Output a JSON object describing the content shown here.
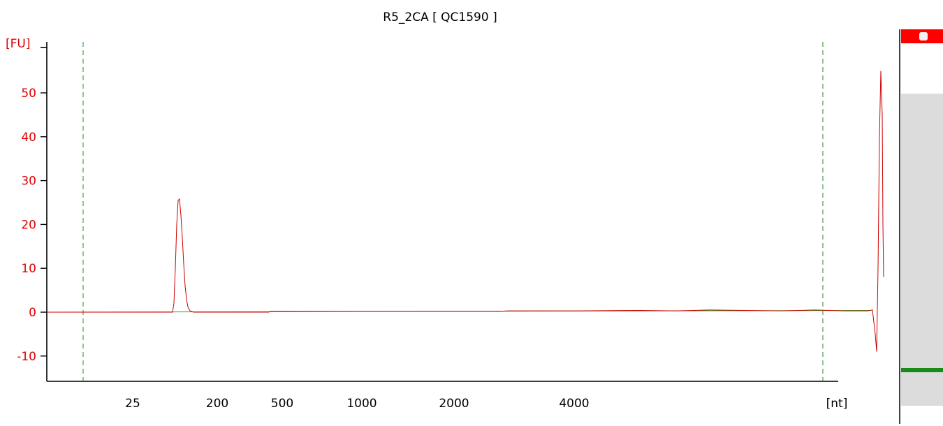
{
  "chart_data": {
    "type": "line",
    "title": "R5_2CA  [ QC1590 ]",
    "ylabel": "[FU]",
    "xlabel": "[nt]",
    "ylim": [
      -15,
      57
    ],
    "yticks": [
      -10,
      0,
      10,
      20,
      30,
      40,
      50
    ],
    "xticks": [
      "25",
      "200",
      "500",
      "1000",
      "2000",
      "4000"
    ],
    "grid": false,
    "series": [
      {
        "color": "#cc0000",
        "values": [
          [
            0,
            0
          ],
          [
            180,
            0
          ],
          [
            182,
            2
          ],
          [
            184,
            10
          ],
          [
            186,
            20
          ],
          [
            188,
            25.5
          ],
          [
            190,
            25.8
          ],
          [
            192,
            22
          ],
          [
            194,
            17
          ],
          [
            196,
            11
          ],
          [
            198,
            6
          ],
          [
            200,
            3
          ],
          [
            202,
            1.2
          ],
          [
            205,
            0.3
          ],
          [
            210,
            0
          ],
          [
            318,
            0
          ],
          [
            320,
            0.2
          ],
          [
            650,
            0.2
          ],
          [
            660,
            0.3
          ],
          [
            700,
            0.3
          ],
          [
            760,
            0.3
          ],
          [
            850,
            0.4
          ],
          [
            900,
            0.3
          ],
          [
            950,
            0.5
          ],
          [
            1000,
            0.4
          ],
          [
            1050,
            0.3
          ],
          [
            1100,
            0.5
          ],
          [
            1140,
            0.3
          ],
          [
            1175,
            0.3
          ],
          [
            1182,
            0.5
          ],
          [
            1186,
            -5
          ],
          [
            1188,
            -9
          ],
          [
            1190,
            10
          ],
          [
            1192,
            40
          ],
          [
            1194,
            55
          ],
          [
            1196,
            45
          ],
          [
            1197,
            20
          ],
          [
            1198,
            8
          ]
        ]
      },
      {
        "color": "#22aa22",
        "values": [
          [
            0,
            0
          ],
          [
            1180,
            0.4
          ]
        ]
      }
    ]
  },
  "markers": {
    "color": "#2a8a2a",
    "lower_marker_nt": "",
    "upper_marker_nt": ""
  },
  "gel_lane": {
    "top_band_color": "#ff0000",
    "lane_color": "#dcdcdc",
    "band_color": "#1a8a1a"
  }
}
